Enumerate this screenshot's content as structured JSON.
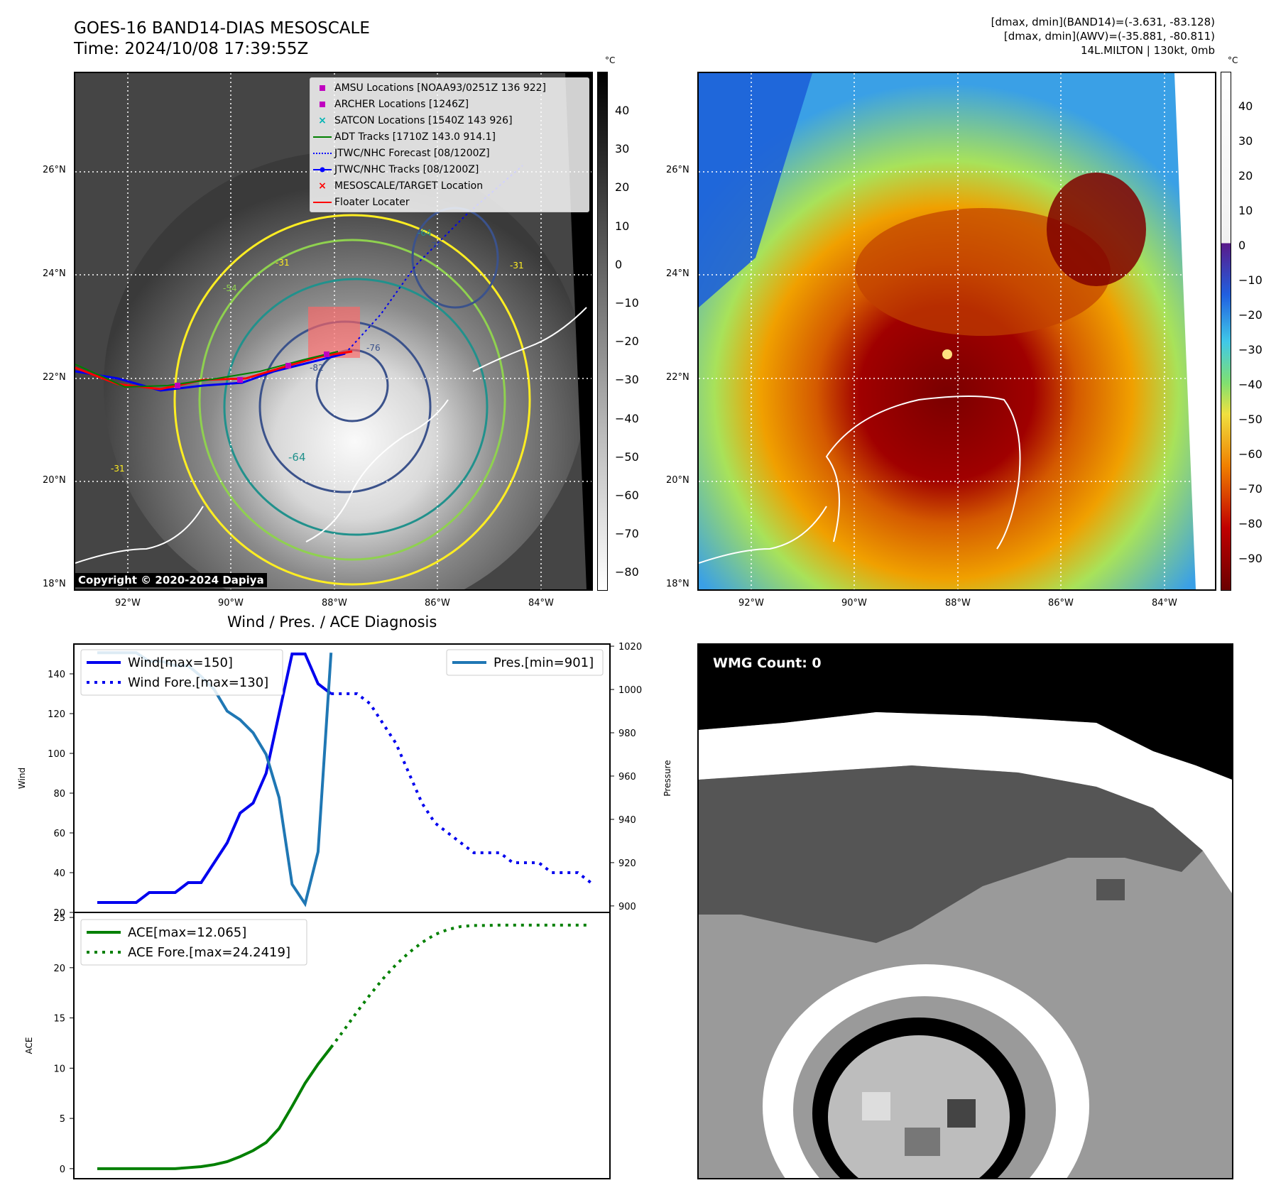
{
  "header": {
    "title_line1": "GOES-16 BAND14-DIAS MESOSCALE",
    "title_line2": "Time: 2024/10/08 17:39:55Z",
    "info_line1": "[dmax, dmin](BAND14)=(-3.631, -83.128)",
    "info_line2": "[dmax, dmin](AWV)=(-35.881, -80.811)",
    "info_line3": "14L.MILTON | 130kt, 0mb"
  },
  "map_axes": {
    "lat_labels": [
      "26°N",
      "24°N",
      "22°N",
      "20°N",
      "18°N"
    ],
    "lon_labels": [
      "92°W",
      "90°W",
      "88°W",
      "86°W",
      "84°W"
    ]
  },
  "colorbar_gray": {
    "unit": "°C",
    "ticks": [
      "40",
      "30",
      "20",
      "10",
      "0",
      "−10",
      "−20",
      "−30",
      "−40",
      "−50",
      "−60",
      "−70",
      "−80"
    ]
  },
  "colorbar_color": {
    "unit": "°C",
    "ticks": [
      "40",
      "30",
      "20",
      "10",
      "0",
      "−10",
      "−20",
      "−30",
      "−40",
      "−50",
      "−60",
      "−70",
      "−80",
      "−90"
    ]
  },
  "map_legend": [
    {
      "label": "AMSU Locations [NOAA93/0251Z 136 922]",
      "symbol": "square",
      "color": "#c000c0"
    },
    {
      "label": "ARCHER Locations [1246Z]",
      "symbol": "square",
      "color": "#c000c0"
    },
    {
      "label": "SATCON Locations [1540Z 143 926]",
      "symbol": "x",
      "color": "#00b4b4"
    },
    {
      "label": "ADT Tracks [1710Z 143.0 914.1]",
      "symbol": "line",
      "color": "#008000"
    },
    {
      "label": "JTWC/NHC Forecast [08/1200Z]",
      "symbol": "dotted",
      "color": "#0000ff"
    },
    {
      "label": "JTWC/NHC Tracks [08/1200Z]",
      "symbol": "line-dot",
      "color": "#0000ff"
    },
    {
      "label": "MESOSCALE/TARGET Location",
      "symbol": "x",
      "color": "#ff0000"
    },
    {
      "label": "Floater Locater",
      "symbol": "line",
      "color": "#ff0000"
    }
  ],
  "contour_labels": [
    "-76",
    "-64",
    "-64",
    "-54",
    "-76",
    "-31",
    "-31",
    "-31",
    "-82"
  ],
  "copyright": "Copyright © 2020-2024 Dapiya",
  "wmg_label": "WMG Count: 0",
  "chart_data": [
    {
      "type": "line",
      "title": "Wind / Pres. / ACE Diagnosis",
      "ylabel": "Wind",
      "y2label": "Pressure",
      "ylim": [
        20,
        155
      ],
      "y2lim": [
        897,
        1021
      ],
      "wind_ticks": [
        "20",
        "40",
        "60",
        "80",
        "100",
        "120",
        "140"
      ],
      "pres_ticks": [
        "900",
        "920",
        "940",
        "960",
        "980",
        "1000",
        "1020"
      ],
      "legend_left": [
        "Wind[max=150]",
        "Wind Fore.[max=130]"
      ],
      "legend_right": [
        "Pres.[min=901]"
      ],
      "series": [
        {
          "name": "Wind[max=150]",
          "axis": "left",
          "style": "solid",
          "color": "#0000ee",
          "x": [
            0,
            1,
            2,
            3,
            4,
            5,
            6,
            7,
            8,
            9,
            10,
            11,
            12,
            13,
            14,
            15,
            16,
            17,
            18
          ],
          "y": [
            25,
            25,
            25,
            25,
            30,
            30,
            30,
            35,
            35,
            45,
            55,
            70,
            75,
            90,
            120,
            150,
            150,
            135,
            130
          ]
        },
        {
          "name": "Wind Fore.[max=130]",
          "axis": "left",
          "style": "dotted",
          "color": "#0000ee",
          "x": [
            18,
            19,
            20,
            21,
            22,
            23,
            24,
            25,
            26,
            27,
            28,
            29,
            30,
            31,
            32,
            33,
            34,
            35,
            36,
            37,
            38
          ],
          "y": [
            130,
            130,
            130,
            125,
            115,
            105,
            90,
            75,
            65,
            60,
            55,
            50,
            50,
            50,
            45,
            45,
            45,
            40,
            40,
            40,
            35
          ]
        },
        {
          "name": "Pres.[min=901]",
          "axis": "right",
          "style": "solid",
          "color": "#1f77b4",
          "x": [
            0,
            1,
            2,
            3,
            4,
            5,
            6,
            7,
            8,
            9,
            10,
            11,
            12,
            13,
            14,
            15,
            16,
            17,
            18
          ],
          "y": [
            1017,
            1017,
            1017,
            1017,
            1013,
            1013,
            1011,
            1011,
            1006,
            1000,
            990,
            986,
            980,
            970,
            950,
            910,
            901,
            925,
            1017
          ]
        }
      ]
    },
    {
      "type": "line",
      "ylabel": "ACE",
      "ylim": [
        -1,
        25.5
      ],
      "ace_ticks": [
        "0",
        "5",
        "10",
        "15",
        "20",
        "25"
      ],
      "legend": [
        "ACE[max=12.065]",
        "ACE Fore.[max=24.2419]"
      ],
      "series": [
        {
          "name": "ACE[max=12.065]",
          "style": "solid",
          "color": "#008000",
          "x": [
            0,
            1,
            2,
            3,
            4,
            5,
            6,
            7,
            8,
            9,
            10,
            11,
            12,
            13,
            14,
            15,
            16,
            17,
            18
          ],
          "y": [
            0,
            0,
            0,
            0,
            0,
            0,
            0,
            0.1,
            0.2,
            0.4,
            0.7,
            1.2,
            1.8,
            2.6,
            4.0,
            6.2,
            8.5,
            10.4,
            12.065
          ]
        },
        {
          "name": "ACE Fore.[max=24.2419]",
          "style": "dotted",
          "color": "#008000",
          "x": [
            18,
            19,
            20,
            21,
            22,
            23,
            24,
            25,
            26,
            27,
            28,
            29,
            30,
            31,
            32,
            33,
            34,
            35,
            36,
            37,
            38
          ],
          "y": [
            12.065,
            13.8,
            15.6,
            17.3,
            18.9,
            20.3,
            21.5,
            22.5,
            23.3,
            23.8,
            24.1,
            24.2,
            24.2,
            24.24,
            24.24,
            24.24,
            24.24,
            24.24,
            24.24,
            24.24,
            24.24
          ]
        }
      ]
    }
  ]
}
